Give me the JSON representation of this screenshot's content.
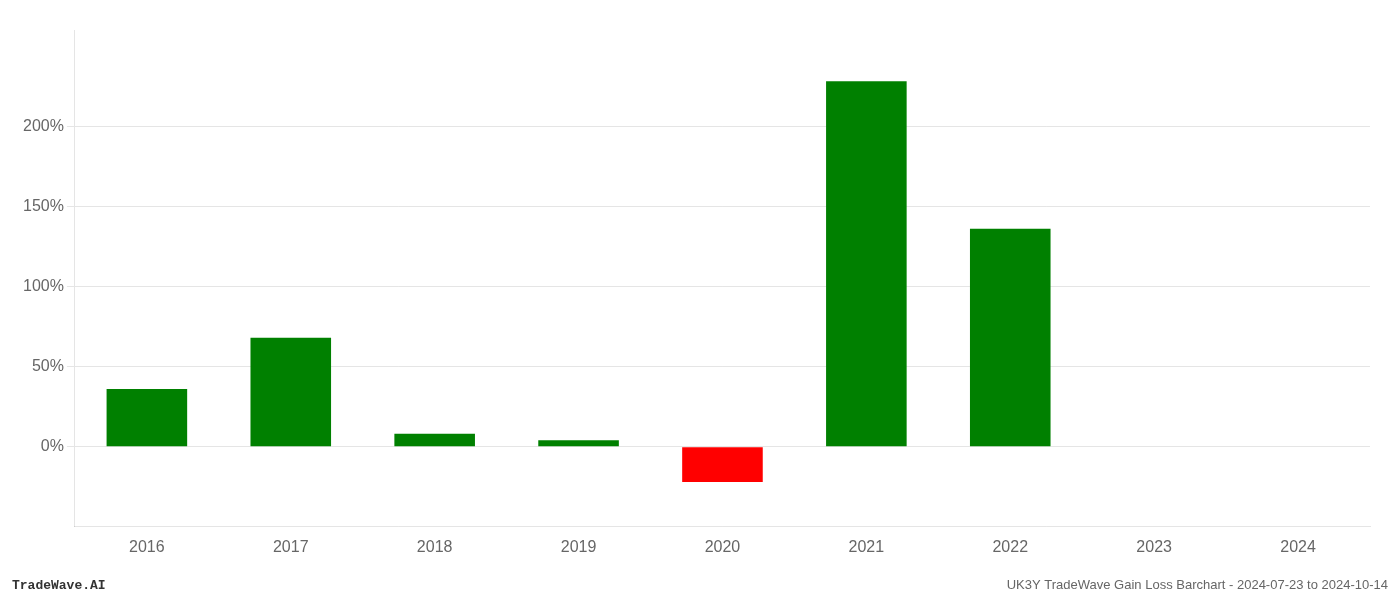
{
  "chart_data": {
    "type": "bar",
    "categories": [
      "2016",
      "2017",
      "2018",
      "2019",
      "2020",
      "2021",
      "2022",
      "2023",
      "2024"
    ],
    "values": [
      36,
      68,
      8,
      4,
      -22,
      228,
      136,
      0,
      0
    ],
    "colors": [
      "#008000",
      "#008000",
      "#008000",
      "#008000",
      "#FF0000",
      "#008000",
      "#008000",
      "#008000",
      "#008000"
    ],
    "ylim": [
      -50,
      260
    ],
    "yticks": [
      {
        "value": 0,
        "label": "0%"
      },
      {
        "value": 50,
        "label": "50%"
      },
      {
        "value": 100,
        "label": "100%"
      },
      {
        "value": 150,
        "label": "150%"
      },
      {
        "value": 200,
        "label": "200%"
      }
    ],
    "grid": true,
    "annotations": [
      "TradeWave.AI",
      "UK3Y TradeWave Gain Loss Barchart - 2024-07-23 to 2024-10-14"
    ]
  }
}
